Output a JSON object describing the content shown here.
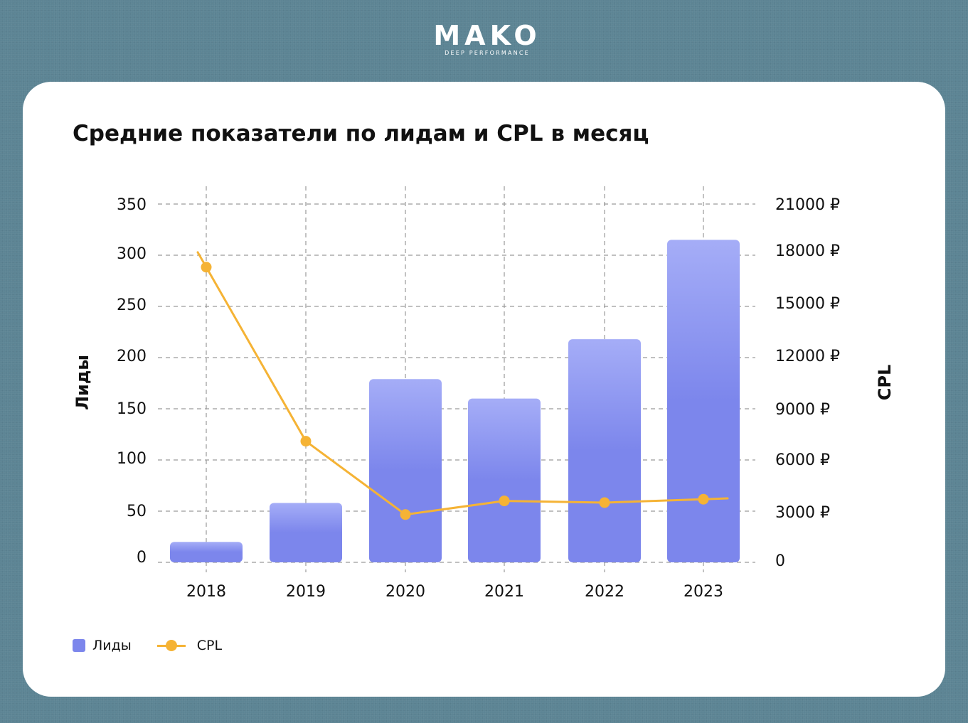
{
  "brand": {
    "name": "MAKO",
    "tagline": "DEEP PERFORMANCE"
  },
  "chart_data": {
    "type": "bar",
    "title": "Средние показатели по лидам и CPL в месяц",
    "categories": [
      "2018",
      "2019",
      "2020",
      "2021",
      "2022",
      "2023"
    ],
    "series": [
      {
        "name": "Лиды",
        "type": "bar",
        "axis": "left",
        "color": "#7c86ec",
        "values": [
          20,
          58,
          179,
          160,
          218,
          315
        ]
      },
      {
        "name": "CPL",
        "type": "line",
        "axis": "right",
        "color": "#f5b335",
        "values": [
          17300,
          7100,
          2800,
          3600,
          3500,
          3700
        ]
      }
    ],
    "y_left": {
      "label": "Лиды",
      "lim": [
        0,
        350
      ],
      "ticks": [
        "0",
        "50",
        "100",
        "150",
        "200",
        "250",
        "300",
        "350"
      ]
    },
    "y_right": {
      "label": "CPL",
      "lim": [
        0,
        21000
      ],
      "ticks": [
        "0",
        "3000 ₽",
        "6000 ₽",
        "9000 ₽",
        "12000 ₽",
        "15000 ₽",
        "18000 ₽",
        "21000 ₽"
      ]
    },
    "grid": true,
    "legend": {
      "placement": "bottom-left",
      "items": [
        "Лиды",
        "CPL"
      ]
    }
  }
}
